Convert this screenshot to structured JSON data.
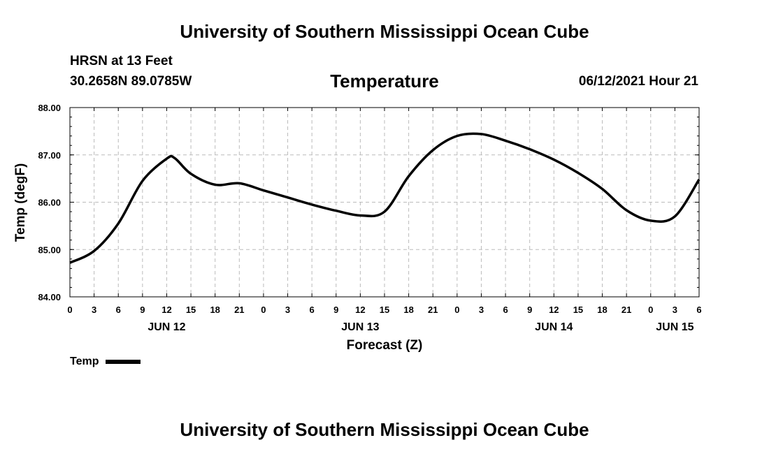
{
  "header": {
    "title": "University of Southern Mississippi Ocean Cube",
    "station": "HRSN at 13 Feet",
    "coords": "30.2658N  89.0785W",
    "chart_title": "Temperature",
    "datetime": "06/12/2021 Hour 21"
  },
  "footer": {
    "title": "University of Southern Mississippi Ocean Cube"
  },
  "chart_data": {
    "type": "line",
    "title": "Temperature",
    "xlabel": "Forecast (Z)",
    "ylabel": "Temp (degF)",
    "ylim": [
      84.0,
      88.0
    ],
    "yticks": [
      "84.00",
      "85.00",
      "86.00",
      "87.00",
      "88.00"
    ],
    "xlim": [
      0,
      78
    ],
    "xticks": [
      "0",
      "3",
      "6",
      "9",
      "12",
      "15",
      "18",
      "21",
      "0",
      "3",
      "6",
      "9",
      "12",
      "15",
      "18",
      "21",
      "0",
      "3",
      "6",
      "9",
      "12",
      "15",
      "18",
      "21",
      "0",
      "3",
      "6"
    ],
    "date_labels": [
      {
        "label": "JUN 12",
        "hour": 12
      },
      {
        "label": "JUN 13",
        "hour": 36
      },
      {
        "label": "JUN 14",
        "hour": 60
      },
      {
        "label": "JUN 15",
        "hour": 75
      }
    ],
    "grid": true,
    "series": [
      {
        "name": "Temp",
        "color": "#000000",
        "x": [
          0,
          3,
          6,
          9,
          12,
          13,
          15,
          18,
          21,
          24,
          27,
          30,
          33,
          36,
          39,
          42,
          45,
          48,
          51,
          54,
          57,
          60,
          63,
          66,
          69,
          72,
          75,
          78
        ],
        "y": [
          84.72,
          84.97,
          85.55,
          86.45,
          86.92,
          86.93,
          86.6,
          86.37,
          86.4,
          86.25,
          86.1,
          85.95,
          85.82,
          85.72,
          85.8,
          86.55,
          87.1,
          87.4,
          87.44,
          87.3,
          87.12,
          86.9,
          86.62,
          86.28,
          85.83,
          85.61,
          85.7,
          86.48
        ]
      }
    ]
  },
  "legend": {
    "label": "Temp"
  }
}
